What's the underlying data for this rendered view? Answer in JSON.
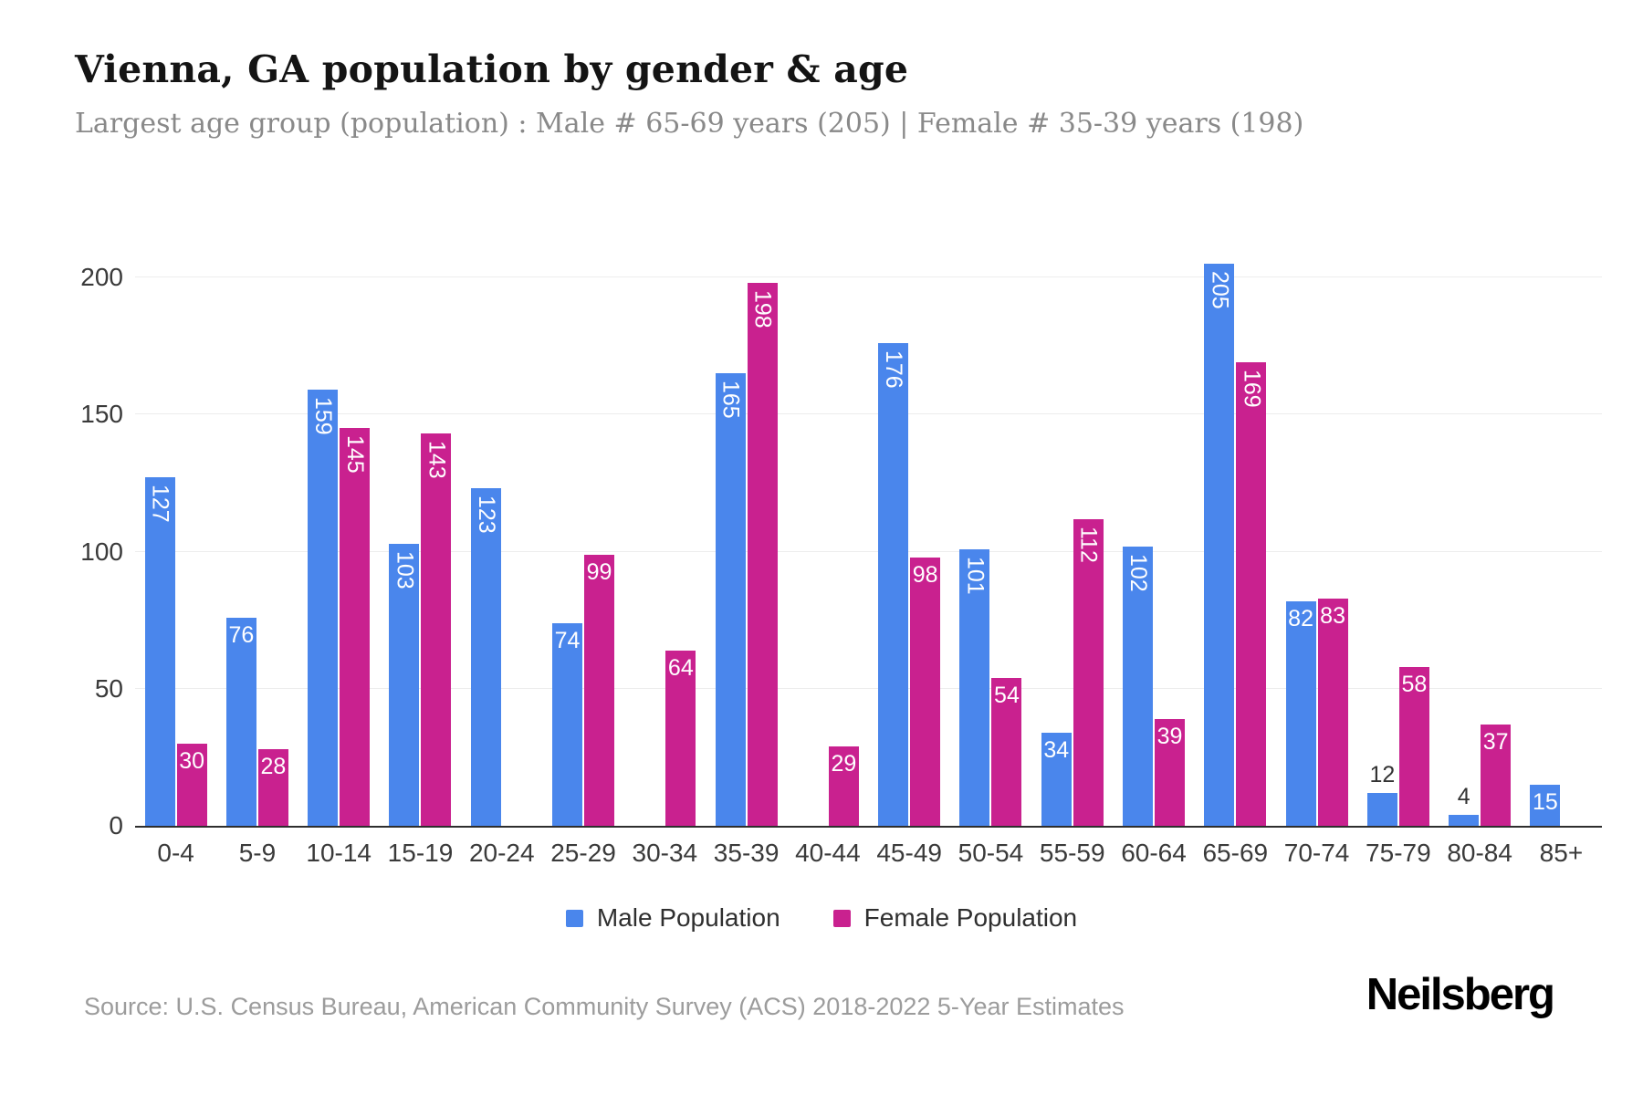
{
  "header": {
    "title": "Vienna, GA population by gender & age",
    "subtitle": "Largest age group (population) : Male # 65-69 years (205) | Female # 35-39 years (198)"
  },
  "chart_data": {
    "type": "bar",
    "title": "Vienna, GA population by gender & age",
    "categories": [
      "0-4",
      "5-9",
      "10-14",
      "15-19",
      "20-24",
      "25-29",
      "30-34",
      "35-39",
      "40-44",
      "45-49",
      "50-54",
      "55-59",
      "60-64",
      "65-69",
      "70-74",
      "75-79",
      "80-84",
      "85+"
    ],
    "series": [
      {
        "name": "Male Population",
        "color": "#4a86ec",
        "values": [
          127,
          76,
          159,
          103,
          123,
          74,
          0,
          165,
          0,
          176,
          101,
          34,
          102,
          205,
          82,
          12,
          4,
          15
        ]
      },
      {
        "name": "Female Population",
        "color": "#c9218f",
        "values": [
          30,
          28,
          145,
          143,
          0,
          99,
          64,
          198,
          29,
          98,
          54,
          112,
          39,
          169,
          83,
          58,
          37,
          0
        ]
      }
    ],
    "xlabel": "",
    "ylabel": "",
    "ylim": [
      0,
      218
    ],
    "yticks": [
      0,
      50,
      100,
      150,
      200
    ],
    "grid": true,
    "legend_position": "bottom",
    "bar_label_color_inside": "#ffffff",
    "bar_label_color_outside": "#333333"
  },
  "footer": {
    "source": "Source: U.S. Census Bureau, American Community Survey (ACS) 2018-2022 5-Year Estimates",
    "logo": "Neilsberg"
  }
}
